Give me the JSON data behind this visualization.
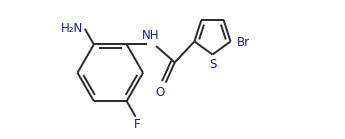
{
  "background_color": "#ffffff",
  "line_color": "#2a2a2a",
  "label_color": "#1a1a8c",
  "line_width": 1.4,
  "font_size": 8.5,
  "figsize": [
    3.45,
    1.39
  ],
  "dpi": 100,
  "xlim": [
    0.0,
    7.2
  ],
  "ylim": [
    -2.0,
    2.2
  ]
}
